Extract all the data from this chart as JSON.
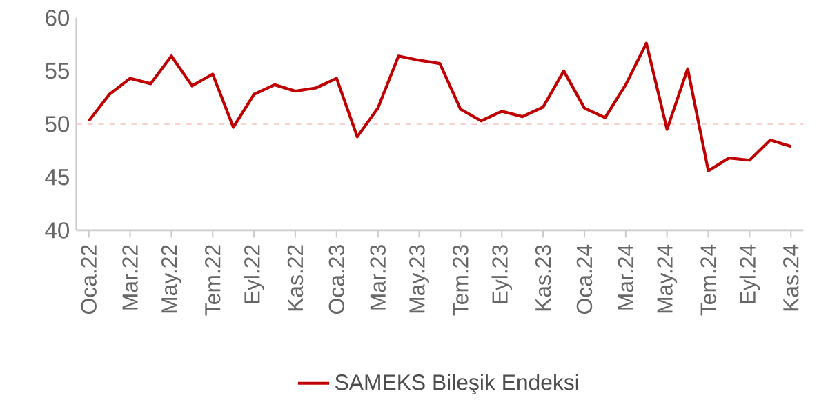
{
  "chart_data": {
    "type": "line",
    "categories": [
      "Oca.22",
      null,
      "Mar.22",
      null,
      "May.22",
      null,
      "Tem.22",
      null,
      "Eyl.22",
      null,
      "Kas.22",
      null,
      "Oca.23",
      null,
      "Mar.23",
      null,
      "May.23",
      null,
      "Tem.23",
      null,
      "Eyl.23",
      null,
      "Kas.23",
      null,
      "Oca.24",
      null,
      "Mar.24",
      null,
      "May.24",
      null,
      "Tem.24",
      null,
      "Eyl.24",
      null,
      "Kas.24"
    ],
    "series": [
      {
        "name": "SAMEKS Bileşik Endeksi",
        "color": "#c00000",
        "values": [
          50.3,
          52.8,
          54.3,
          53.8,
          56.4,
          53.6,
          54.7,
          49.7,
          52.8,
          53.7,
          53.1,
          53.4,
          54.3,
          48.8,
          51.5,
          56.4,
          56.0,
          55.7,
          51.4,
          50.3,
          51.2,
          50.7,
          51.6,
          55.0,
          51.5,
          50.6,
          53.7,
          57.6,
          49.5,
          55.2,
          45.6,
          46.8,
          46.6,
          48.5,
          47.9
        ]
      }
    ],
    "ylim": [
      40,
      60
    ],
    "yticks": [
      40,
      45,
      50,
      55,
      60
    ],
    "ref_lines": [
      {
        "axis": "y",
        "value": 50,
        "color": "#f6d4d4",
        "line_style": "dashed"
      }
    ],
    "grid": false,
    "legend": "bottom",
    "marker": "none",
    "line_style": "solid"
  }
}
